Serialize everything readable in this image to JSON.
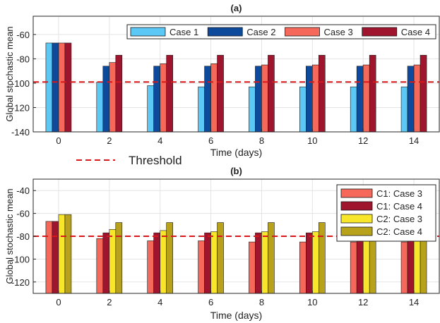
{
  "figure": {
    "threshold_legend_label": "Threshold"
  },
  "chart_data": [
    {
      "type": "bar",
      "title": "(a)",
      "xlabel": "Time (days)",
      "ylabel": "Global stochastic mean",
      "ylim": [
        -140,
        -45
      ],
      "yticks": [
        -140,
        -120,
        -100,
        -80,
        -60
      ],
      "categories": [
        "0",
        "2",
        "4",
        "6",
        "8",
        "10",
        "12",
        "14"
      ],
      "threshold": -99,
      "threshold_style": "dashed",
      "grid": true,
      "legend_position": "top-right",
      "legend_layout": "horizontal",
      "series": [
        {
          "name": "Case 1",
          "color": "#5bc8f5",
          "values": [
            -67,
            -99,
            -102,
            -103,
            -103,
            -103,
            -103,
            -103
          ]
        },
        {
          "name": "Case 2",
          "color": "#0d4a9b",
          "values": [
            -67,
            -86,
            -86,
            -86,
            -86,
            -86,
            -86,
            -86
          ]
        },
        {
          "name": "Case 3",
          "color": "#f5685a",
          "values": [
            -67,
            -83,
            -84,
            -84,
            -85,
            -85,
            -85,
            -85
          ]
        },
        {
          "name": "Case 4",
          "color": "#a0152e",
          "values": [
            -67,
            -77,
            -77,
            -77,
            -77,
            -77,
            -77,
            -77
          ]
        }
      ]
    },
    {
      "type": "bar",
      "title": "(b)",
      "xlabel": "Time (days)",
      "ylabel": "Global stochastic mean",
      "ylim": [
        -130,
        -30
      ],
      "yticks": [
        -120,
        -100,
        -80,
        -60,
        -40
      ],
      "categories": [
        "0",
        "2",
        "4",
        "6",
        "8",
        "10",
        "12",
        "14"
      ],
      "threshold": -80,
      "threshold_style": "dashed",
      "grid": true,
      "legend_position": "top-right",
      "legend_layout": "vertical",
      "series": [
        {
          "name": "C1: Case 3",
          "color": "#f5685a",
          "values": [
            -67,
            -82,
            -84,
            -84,
            -85,
            -85,
            -85,
            -85
          ]
        },
        {
          "name": "C1: Case 4",
          "color": "#a0152e",
          "values": [
            -67,
            -77,
            -77,
            -77,
            -77,
            -77,
            -77,
            -77
          ]
        },
        {
          "name": "C2: Case 3",
          "color": "#f7e62a",
          "values": [
            -61,
            -74,
            -75,
            -76,
            -76,
            -76,
            -76,
            -76
          ]
        },
        {
          "name": "C2: Case 4",
          "color": "#b8a21c",
          "values": [
            -61,
            -68,
            -68,
            -68,
            -68,
            -68,
            -68,
            -68
          ]
        }
      ]
    }
  ]
}
